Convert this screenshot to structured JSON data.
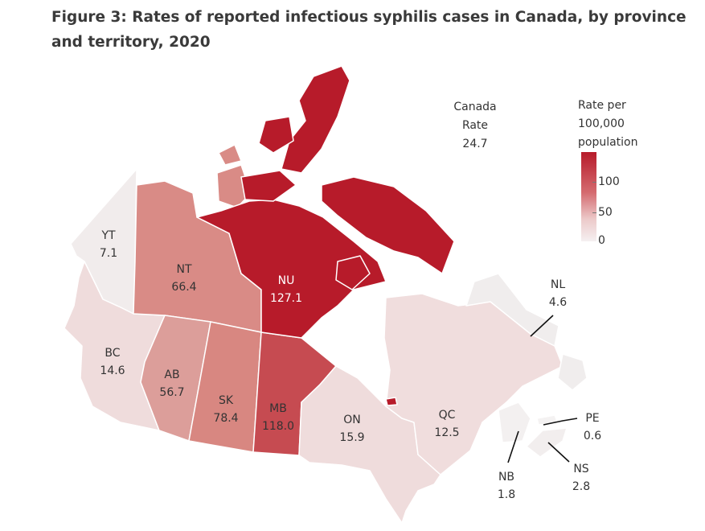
{
  "title": "Figure 3: Rates of reported infectious syphilis cases in Canada, by province and territory, 2020",
  "canada": {
    "line1": "Canada",
    "line2": "Rate",
    "value": "24.7"
  },
  "legend": {
    "line1": "Rate per",
    "line2": "100,000",
    "line3": "population",
    "ticks": [
      "100",
      "50",
      "0"
    ],
    "colors": {
      "high": "#b71b2a",
      "mid": "#d46a6f",
      "low": "#f5f0f1"
    }
  },
  "provinces": [
    {
      "code": "YT",
      "rate": "7.1",
      "color": "#f1ecec"
    },
    {
      "code": "NT",
      "rate": "66.4",
      "color": "#d98b86"
    },
    {
      "code": "NU",
      "rate": "127.1",
      "color": "#b71b2a"
    },
    {
      "code": "BC",
      "rate": "14.6",
      "color": "#efdcdc"
    },
    {
      "code": "AB",
      "rate": "56.7",
      "color": "#dc9e9a"
    },
    {
      "code": "SK",
      "rate": "78.4",
      "color": "#d88781"
    },
    {
      "code": "MB",
      "rate": "118.0",
      "color": "#c64b51"
    },
    {
      "code": "ON",
      "rate": "15.9",
      "color": "#efdcdc"
    },
    {
      "code": "QC",
      "rate": "12.5",
      "color": "#f0dddd"
    },
    {
      "code": "NL",
      "rate": "4.6",
      "color": "#f0eded"
    },
    {
      "code": "PE",
      "rate": "0.6",
      "color": "#f4f2f2"
    },
    {
      "code": "NB",
      "rate": "1.8",
      "color": "#f3f0f0"
    },
    {
      "code": "NS",
      "rate": "2.8",
      "color": "#f2eeee"
    }
  ]
}
